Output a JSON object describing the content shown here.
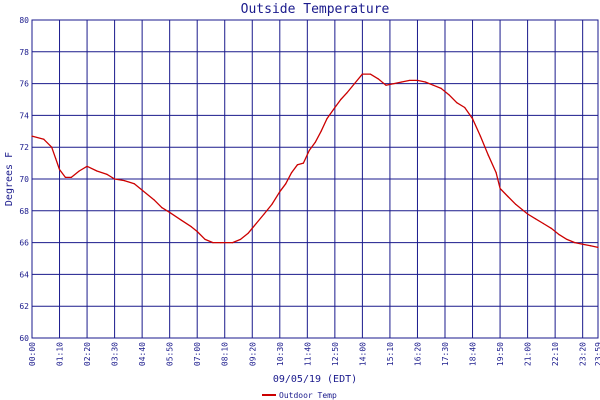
{
  "chart_data": {
    "type": "line",
    "title": "Outside Temperature",
    "xlabel": "09/05/19 (EDT)",
    "ylabel": "Degrees F",
    "ylim": [
      60,
      80
    ],
    "yticks": [
      60,
      62,
      64,
      66,
      68,
      70,
      72,
      74,
      76,
      78,
      80
    ],
    "xticks": [
      "00:00",
      "01:10",
      "02:20",
      "03:30",
      "04:40",
      "05:50",
      "07:00",
      "08:10",
      "09:20",
      "10:30",
      "11:40",
      "12:50",
      "14:00",
      "15:10",
      "16:20",
      "17:30",
      "18:40",
      "19:50",
      "21:00",
      "22:10",
      "23:20",
      "23:59"
    ],
    "grid": true,
    "legend": "bottom",
    "series": [
      {
        "name": "Outdoor Temp",
        "color": "#cc0000",
        "x": [
          "00:00",
          "00:30",
          "00:50",
          "01:00",
          "01:10",
          "01:25",
          "01:40",
          "02:00",
          "02:20",
          "02:45",
          "03:10",
          "03:30",
          "03:55",
          "04:20",
          "04:40",
          "05:10",
          "05:30",
          "05:50",
          "06:20",
          "06:45",
          "07:00",
          "07:20",
          "07:40",
          "08:00",
          "08:10",
          "08:30",
          "08:50",
          "09:10",
          "09:30",
          "09:50",
          "10:10",
          "10:30",
          "10:45",
          "11:00",
          "11:15",
          "11:30",
          "11:45",
          "12:00",
          "12:15",
          "12:30",
          "12:50",
          "13:05",
          "13:20",
          "13:40",
          "14:00",
          "14:20",
          "14:40",
          "15:00",
          "15:20",
          "15:40",
          "16:00",
          "16:20",
          "16:40",
          "17:00",
          "17:20",
          "17:40",
          "18:00",
          "18:20",
          "18:40",
          "19:00",
          "19:20",
          "19:40",
          "19:50",
          "20:10",
          "20:30",
          "21:00",
          "21:20",
          "21:40",
          "22:00",
          "22:20",
          "22:40",
          "23:00",
          "23:20",
          "23:40",
          "23:59"
        ],
        "values": [
          72.7,
          72.5,
          72.0,
          71.3,
          70.6,
          70.1,
          70.1,
          70.5,
          70.8,
          70.5,
          70.3,
          70.0,
          69.9,
          69.7,
          69.3,
          68.7,
          68.2,
          67.9,
          67.4,
          67.0,
          66.7,
          66.2,
          66.0,
          66.0,
          66.0,
          66.0,
          66.2,
          66.6,
          67.2,
          67.8,
          68.4,
          69.2,
          69.7,
          70.4,
          70.9,
          71.0,
          71.8,
          72.3,
          73.0,
          73.8,
          74.5,
          75.0,
          75.4,
          76.0,
          76.6,
          76.6,
          76.3,
          75.9,
          76.0,
          76.1,
          76.2,
          76.2,
          76.1,
          75.9,
          75.7,
          75.3,
          74.8,
          74.5,
          73.8,
          72.7,
          71.5,
          70.4,
          69.4,
          68.9,
          68.4,
          67.8,
          67.5,
          67.2,
          66.9,
          66.5,
          66.2,
          66.0,
          65.9,
          65.8,
          65.7
        ]
      }
    ]
  }
}
